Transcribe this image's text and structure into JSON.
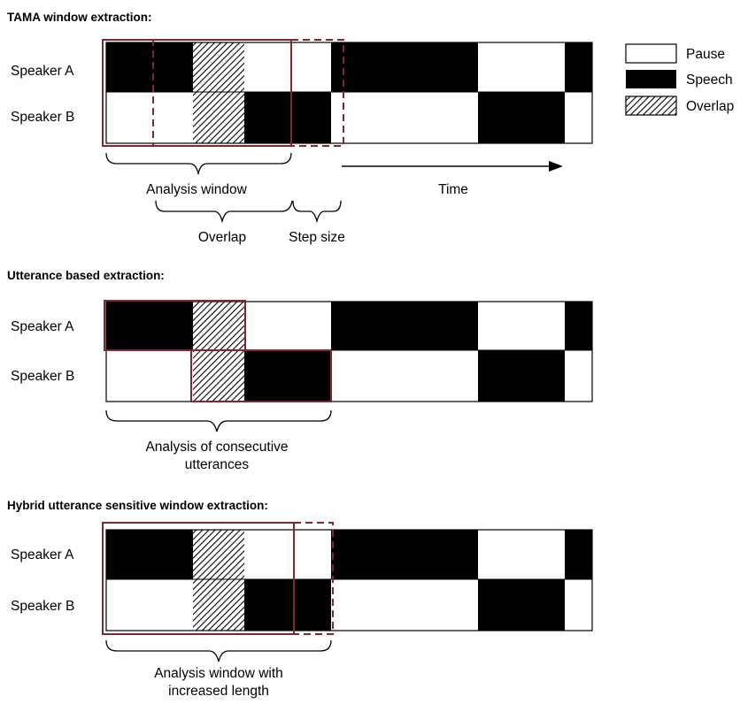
{
  "colors": {
    "speech": "#000000",
    "pause": "#ffffff",
    "window_outline": "#7b2a33"
  },
  "legend": {
    "pause": "Pause",
    "speech": "Speech",
    "overlap": "Overlap"
  },
  "sections": [
    {
      "title": "TAMA window extraction:",
      "speakers": [
        "Speaker A",
        "Speaker B"
      ],
      "labels": {
        "analysis_window": "Analysis window",
        "overlap": "Overlap",
        "step_size": "Step size",
        "time": "Time"
      }
    },
    {
      "title": "Utterance based extraction:",
      "speakers": [
        "Speaker A",
        "Speaker B"
      ],
      "labels": {
        "consecutive_line1": "Analysis of consecutive",
        "consecutive_line2": "utterances"
      }
    },
    {
      "title": "Hybrid utterance sensitive window extraction:",
      "speakers": [
        "Speaker A",
        "Speaker B"
      ],
      "labels": {
        "increased_line1": "Analysis window with",
        "increased_line2": "increased length"
      }
    }
  ]
}
